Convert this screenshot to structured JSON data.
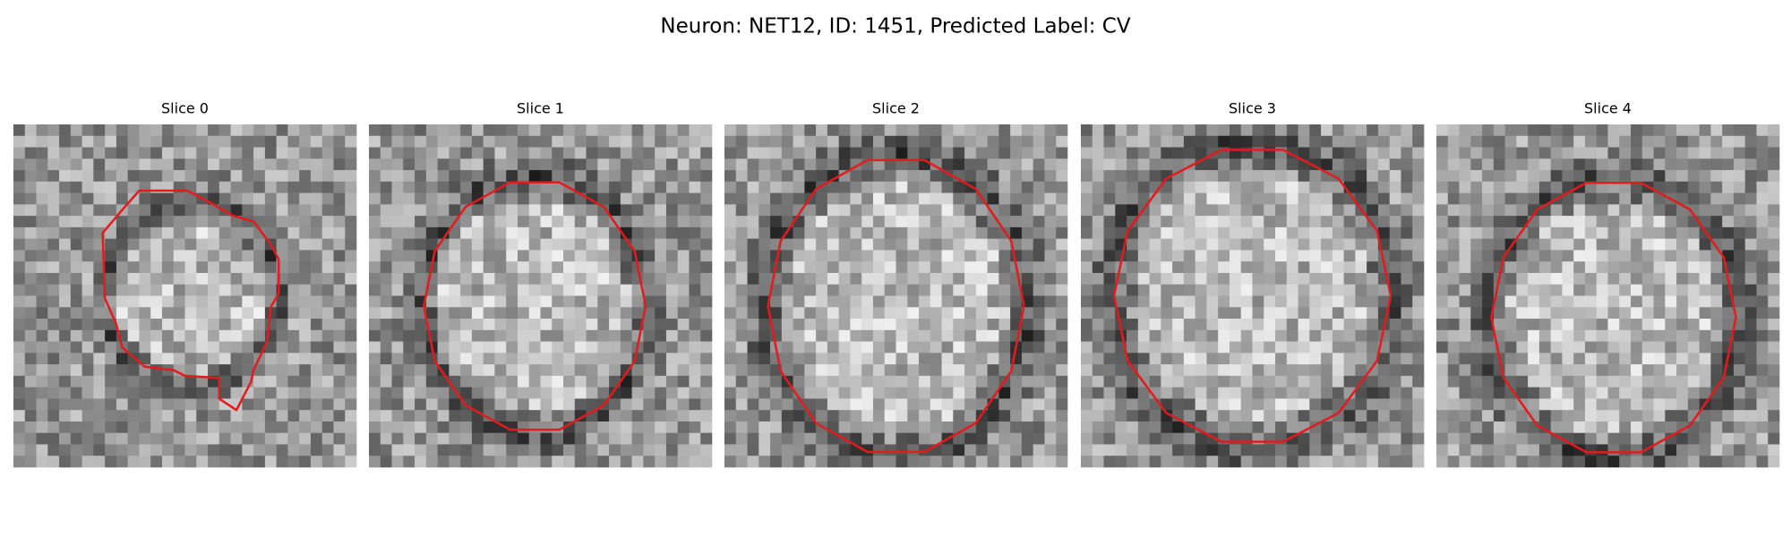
{
  "title": "Neuron: NET12, ID: 1451, Predicted Label: CV",
  "panels": [
    {
      "title": "Slice 0"
    },
    {
      "title": "Slice 1"
    },
    {
      "title": "Slice 2"
    },
    {
      "title": "Slice 3"
    },
    {
      "title": "Slice 4"
    }
  ]
}
